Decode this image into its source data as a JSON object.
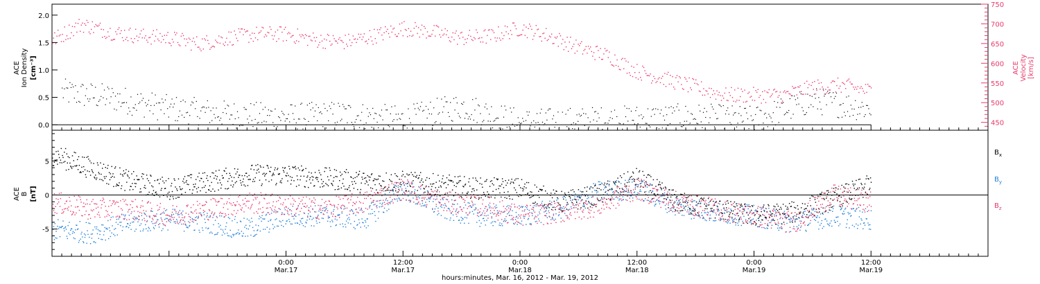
{
  "chart_data": [
    {
      "type": "scatter",
      "panel": "top",
      "x_axis": {
        "type": "time",
        "range": [
          "2012-03-16T00:00",
          "2012-03-20T00:00"
        ],
        "major_ticks": [
          {
            "time": "2012-03-17T00:00",
            "label": "0:00",
            "sublabel": "Mar.17"
          },
          {
            "time": "2012-03-17T12:00",
            "label": "12:00",
            "sublabel": "Mar.17"
          },
          {
            "time": "2012-03-18T00:00",
            "label": "0:00",
            "sublabel": "Mar.18"
          },
          {
            "time": "2012-03-18T12:00",
            "label": "12:00",
            "sublabel": "Mar.18"
          },
          {
            "time": "2012-03-19T00:00",
            "label": "0:00",
            "sublabel": "Mar.19"
          },
          {
            "time": "2012-03-19T12:00",
            "label": "12:00",
            "sublabel": "Mar.19"
          }
        ]
      },
      "y_left": {
        "label_lines": [
          "ACE",
          "Ion Density"
        ],
        "unit": "[cm⁻³]",
        "range": [
          -0.1,
          2.2
        ],
        "ticks": [
          0.0,
          0.5,
          1.0,
          1.5,
          2.0
        ],
        "tick_labels": [
          "0.0",
          "0.5",
          "1.0",
          "1.5",
          "2.0"
        ]
      },
      "y_right": {
        "label_lines": [
          "ACE",
          "Velocity"
        ],
        "unit": "[km/s]",
        "range": [
          430,
          750
        ],
        "ticks": [
          450,
          500,
          550,
          600,
          650,
          700,
          750
        ],
        "tick_labels": [
          "450",
          "500",
          "550",
          "600",
          "650",
          "700",
          "750"
        ],
        "color": "#e8396a"
      },
      "series": [
        {
          "axis": "left",
          "color": "#000000",
          "x": [
            "2012-03-16T01:00",
            "2012-03-16T06:00",
            "2012-03-16T12:00",
            "2012-03-16T18:00",
            "2012-03-17T00:00",
            "2012-03-17T06:00",
            "2012-03-17T12:00",
            "2012-03-17T18:00",
            "2012-03-18T00:00",
            "2012-03-18T06:00",
            "2012-03-18T12:00",
            "2012-03-18T18:00",
            "2012-03-19T00:00",
            "2012-03-19T06:00",
            "2012-03-19T12:00"
          ],
          "values": [
            0.6,
            0.5,
            0.3,
            0.2,
            0.15,
            0.2,
            0.1,
            0.35,
            0.05,
            0.08,
            0.12,
            0.15,
            0.1,
            0.45,
            0.3
          ]
        },
        {
          "axis": "right",
          "color": "#e8396a",
          "x": [
            "2012-03-16T00:00",
            "2012-03-16T03:00",
            "2012-03-16T06:00",
            "2012-03-16T09:00",
            "2012-03-16T12:00",
            "2012-03-16T15:00",
            "2012-03-16T18:00",
            "2012-03-16T21:00",
            "2012-03-17T00:00",
            "2012-03-17T03:00",
            "2012-03-17T06:00",
            "2012-03-17T09:00",
            "2012-03-17T12:00",
            "2012-03-17T15:00",
            "2012-03-17T18:00",
            "2012-03-17T21:00",
            "2012-03-18T00:00",
            "2012-03-18T03:00",
            "2012-03-18T06:00",
            "2012-03-18T09:00",
            "2012-03-18T12:00",
            "2012-03-18T15:00",
            "2012-03-18T18:00",
            "2012-03-18T21:00",
            "2012-03-19T00:00",
            "2012-03-19T03:00",
            "2012-03-19T06:00",
            "2012-03-19T09:00",
            "2012-03-19T12:00"
          ],
          "values": [
            660,
            700,
            680,
            670,
            665,
            650,
            665,
            675,
            675,
            660,
            655,
            670,
            690,
            680,
            665,
            670,
            690,
            670,
            640,
            620,
            580,
            560,
            540,
            520,
            520,
            520,
            540,
            545,
            530
          ]
        }
      ]
    },
    {
      "type": "scatter",
      "panel": "bottom",
      "x_axis": {
        "type": "time",
        "range": [
          "2012-03-16T00:00",
          "2012-03-20T00:00"
        ],
        "title": "hours:minutes, Mar. 16, 2012 - Mar. 19, 2012"
      },
      "y_left": {
        "label_lines": [
          "ACE",
          "B"
        ],
        "unit": "[nT]",
        "range": [
          -9,
          9.5
        ],
        "ticks": [
          -5,
          0,
          5
        ],
        "tick_labels": [
          "-5",
          "0",
          "5"
        ]
      },
      "series": [
        {
          "name": "Bx",
          "color": "#000000",
          "x": [
            "2012-03-16T00:00",
            "2012-03-16T04:00",
            "2012-03-16T08:00",
            "2012-03-16T12:00",
            "2012-03-16T16:00",
            "2012-03-16T20:00",
            "2012-03-17T00:00",
            "2012-03-17T04:00",
            "2012-03-17T08:00",
            "2012-03-17T12:00",
            "2012-03-17T16:00",
            "2012-03-17T20:00",
            "2012-03-18T00:00",
            "2012-03-18T04:00",
            "2012-03-18T08:00",
            "2012-03-18T12:00",
            "2012-03-18T16:00",
            "2012-03-18T20:00",
            "2012-03-19T00:00",
            "2012-03-19T04:00",
            "2012-03-19T08:00",
            "2012-03-19T12:00"
          ],
          "values": [
            6,
            4,
            2,
            1,
            2,
            3,
            3,
            2.5,
            2,
            2,
            1.5,
            1,
            1,
            -1,
            0,
            2.5,
            -1,
            -2,
            -3,
            -2.5,
            -0.5,
            1.5
          ]
        },
        {
          "name": "By",
          "color": "#1f7fd6",
          "x": [
            "2012-03-16T00:00",
            "2012-03-16T04:00",
            "2012-03-16T08:00",
            "2012-03-16T12:00",
            "2012-03-16T16:00",
            "2012-03-16T20:00",
            "2012-03-17T00:00",
            "2012-03-17T04:00",
            "2012-03-17T08:00",
            "2012-03-17T12:00",
            "2012-03-17T16:00",
            "2012-03-17T20:00",
            "2012-03-18T00:00",
            "2012-03-18T04:00",
            "2012-03-18T08:00",
            "2012-03-18T12:00",
            "2012-03-18T16:00",
            "2012-03-18T20:00",
            "2012-03-19T00:00",
            "2012-03-19T04:00",
            "2012-03-19T08:00",
            "2012-03-19T12:00"
          ],
          "values": [
            -5,
            -5.5,
            -4,
            -3.5,
            -4,
            -5,
            -3,
            -3,
            -3.5,
            1,
            -2,
            -3,
            -3,
            -2,
            0.5,
            1,
            -1.5,
            -2.5,
            -3,
            -4,
            -3,
            -3.5
          ]
        },
        {
          "name": "Bz",
          "color": "#e8396a",
          "x": [
            "2012-03-16T00:00",
            "2012-03-16T04:00",
            "2012-03-16T08:00",
            "2012-03-16T12:00",
            "2012-03-16T16:00",
            "2012-03-16T20:00",
            "2012-03-17T00:00",
            "2012-03-17T04:00",
            "2012-03-17T08:00",
            "2012-03-17T12:00",
            "2012-03-17T16:00",
            "2012-03-17T20:00",
            "2012-03-18T00:00",
            "2012-03-18T04:00",
            "2012-03-18T08:00",
            "2012-03-18T12:00",
            "2012-03-18T16:00",
            "2012-03-18T20:00",
            "2012-03-19T00:00",
            "2012-03-19T04:00",
            "2012-03-19T08:00",
            "2012-03-19T12:00"
          ],
          "values": [
            -1,
            -2,
            -2,
            -3,
            -2,
            -1,
            -1.5,
            -2,
            -1,
            1,
            -1,
            -1.5,
            -3,
            -2.5,
            -1.5,
            1,
            -1,
            -2,
            -3,
            -4,
            0,
            -1
          ]
        }
      ],
      "legend": {
        "placement": "right",
        "entries": [
          {
            "base": "B",
            "sub": "x",
            "color": "#000000"
          },
          {
            "base": "B",
            "sub": "y",
            "color": "#1f7fd6"
          },
          {
            "base": "B",
            "sub": "z",
            "color": "#e8396a"
          }
        ]
      }
    }
  ]
}
